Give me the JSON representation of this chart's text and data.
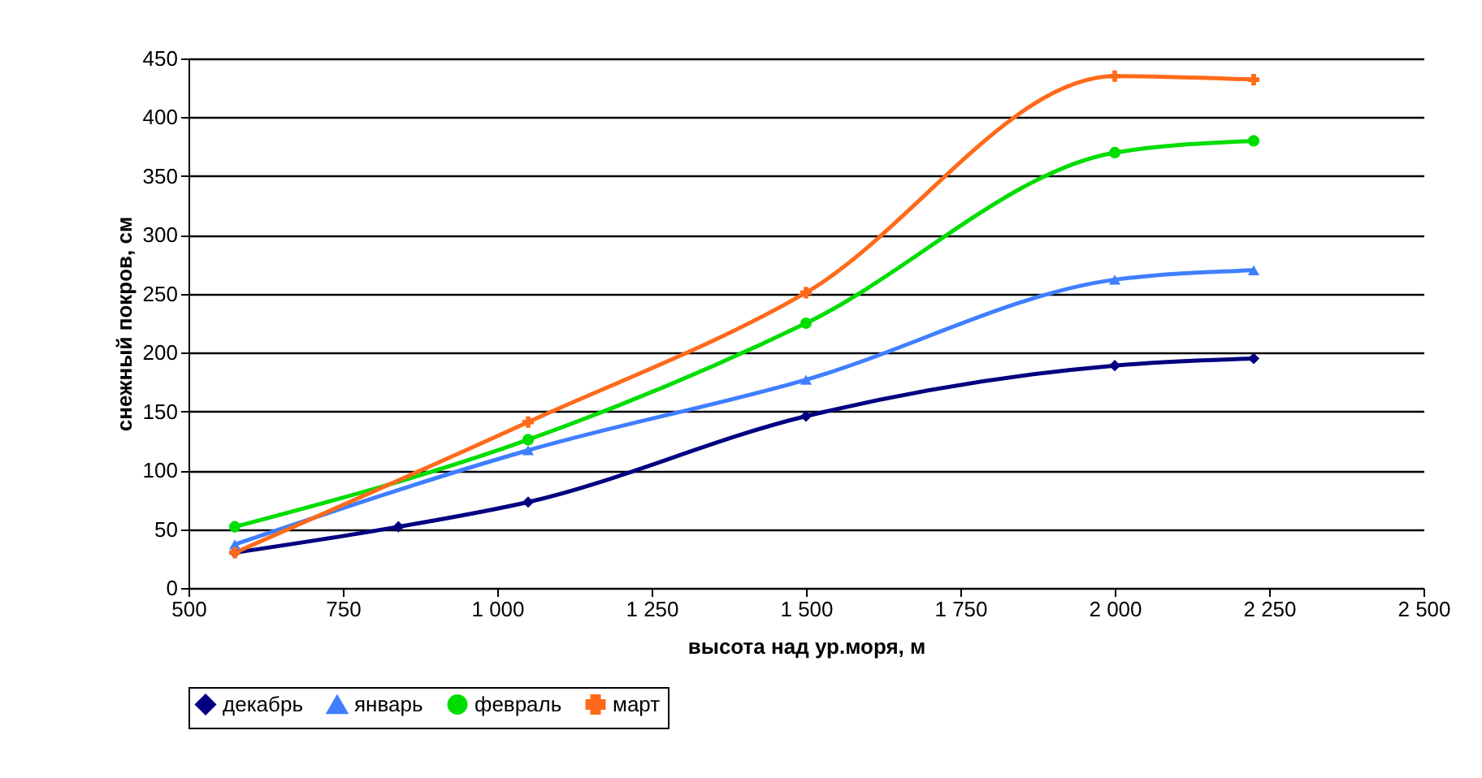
{
  "chart_data": {
    "type": "line",
    "xlabel": "высота над ур.моря, м",
    "ylabel": "снежный покров, см",
    "xlim": [
      500,
      2500
    ],
    "xticks": [
      500,
      750,
      {
        "value": 1000,
        "label": "1 000"
      },
      {
        "value": 1250,
        "label": "1 250"
      },
      {
        "value": 1500,
        "label": "1 500"
      },
      {
        "value": 1750,
        "label": "1 750"
      },
      {
        "value": 2000,
        "label": "2 000"
      },
      {
        "value": 2250,
        "label": "2 250"
      },
      {
        "value": 2500,
        "label": "2 500"
      }
    ],
    "ylim": [
      0,
      450
    ],
    "yticks": [
      0,
      50,
      100,
      150,
      200,
      250,
      300,
      350,
      400,
      450
    ],
    "grid": "y",
    "legend": "bottom",
    "series": [
      {
        "name": "декабрь",
        "color": "#000080",
        "marker": "diamond",
        "x": [
          575,
          840,
          1050,
          1500,
          2000,
          2225
        ],
        "values": [
          30,
          52,
          73,
          146,
          189,
          195
        ]
      },
      {
        "name": "январь",
        "color": "#3f7fff",
        "marker": "triangle",
        "x": [
          575,
          1050,
          1500,
          2000,
          2225
        ],
        "values": [
          37,
          117,
          177,
          262,
          270
        ]
      },
      {
        "name": "февраль",
        "color": "#00dd00",
        "marker": "circle",
        "x": [
          575,
          1050,
          1500,
          2000,
          2225
        ],
        "values": [
          52,
          126,
          225,
          370,
          380
        ]
      },
      {
        "name": "март",
        "color": "#ff6a1a",
        "marker": "cross",
        "x": [
          575,
          1050,
          1500,
          2000,
          2225
        ],
        "values": [
          30,
          141,
          251,
          435,
          432
        ]
      }
    ]
  }
}
